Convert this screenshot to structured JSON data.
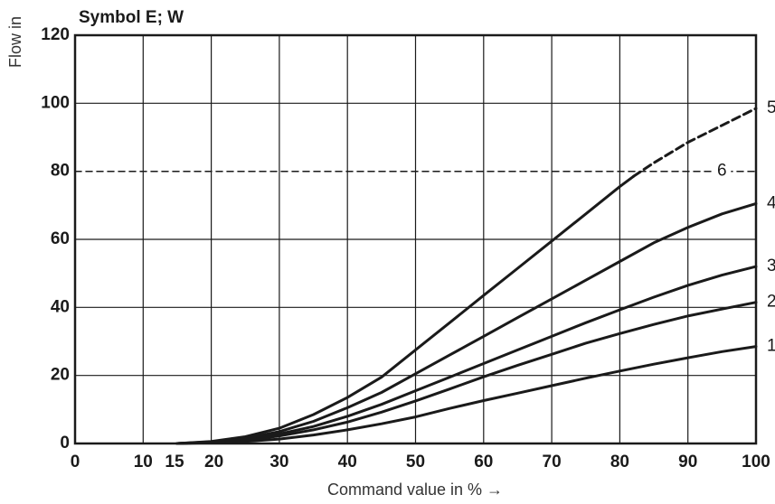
{
  "chart_data": {
    "type": "line",
    "title": "Symbol E; W",
    "ylabel": "Flow in",
    "xlabel": "Command value in % →",
    "xlim": [
      0,
      100
    ],
    "ylim": [
      0,
      120
    ],
    "xticks": [
      "0",
      "10",
      "15",
      "20",
      "30",
      "40",
      "50",
      "60",
      "70",
      "80",
      "90",
      "100"
    ],
    "yticks": [
      "0",
      "20",
      "40",
      "60",
      "80",
      "100",
      "120"
    ],
    "grid": true,
    "colors": {
      "line": "#1a1a1a",
      "grid": "#1a1a1a"
    },
    "series": [
      {
        "name": "1",
        "x": [
          15,
          20,
          25,
          30,
          35,
          40,
          45,
          50,
          55,
          60,
          65,
          70,
          75,
          80,
          85,
          90,
          95,
          100
        ],
        "y": [
          0,
          0.2,
          0.6,
          1.3,
          2.5,
          4,
          5.8,
          7.8,
          10.3,
          12.6,
          14.8,
          17,
          19.2,
          21.3,
          23.3,
          25.2,
          27,
          28.5
        ]
      },
      {
        "name": "2",
        "x": [
          15,
          20,
          25,
          30,
          35,
          40,
          45,
          50,
          55,
          60,
          65,
          70,
          75,
          80,
          85,
          90,
          95,
          100
        ],
        "y": [
          0,
          0.3,
          0.9,
          2.2,
          4,
          6.3,
          9.2,
          12.5,
          16,
          19.6,
          23,
          26.2,
          29.5,
          32.3,
          35,
          37.5,
          39.5,
          41.5
        ]
      },
      {
        "name": "3",
        "x": [
          15,
          20,
          25,
          30,
          35,
          40,
          45,
          50,
          55,
          60,
          65,
          70,
          75,
          80,
          85,
          90,
          95,
          100
        ],
        "y": [
          0,
          0.4,
          1.1,
          2.8,
          5,
          8,
          11.5,
          15.5,
          19.5,
          23.5,
          27.5,
          31.5,
          35.5,
          39.3,
          43,
          46.5,
          49.5,
          52
        ]
      },
      {
        "name": "4",
        "x": [
          15,
          20,
          25,
          30,
          35,
          40,
          45,
          50,
          55,
          60,
          65,
          70,
          75,
          80,
          85,
          90,
          95,
          100
        ],
        "y": [
          0,
          0.5,
          1.5,
          3.5,
          6.5,
          10.5,
          15,
          20.5,
          26,
          31.5,
          37,
          42.5,
          48,
          53.5,
          59,
          63.5,
          67.5,
          70.5
        ]
      },
      {
        "name": "5",
        "x": [
          15,
          20,
          25,
          30,
          35,
          40,
          45,
          50,
          55,
          60,
          65,
          70,
          75,
          80,
          82
        ],
        "y": [
          0,
          0.6,
          2,
          4.5,
          8.5,
          13.5,
          19.5,
          27.5,
          35.5,
          43.5,
          51.5,
          59.5,
          67.5,
          75.5,
          78.5
        ]
      },
      {
        "name": "5",
        "dashed": true,
        "x": [
          82,
          85,
          90,
          95,
          100
        ],
        "y": [
          78.5,
          82.5,
          88.5,
          93.5,
          98.5
        ]
      },
      {
        "name": "6",
        "dashed": true,
        "x": [
          0,
          100
        ],
        "y": [
          80,
          80
        ]
      }
    ],
    "curve_labels": [
      "1",
      "2",
      "3",
      "4",
      "5",
      "6"
    ]
  }
}
